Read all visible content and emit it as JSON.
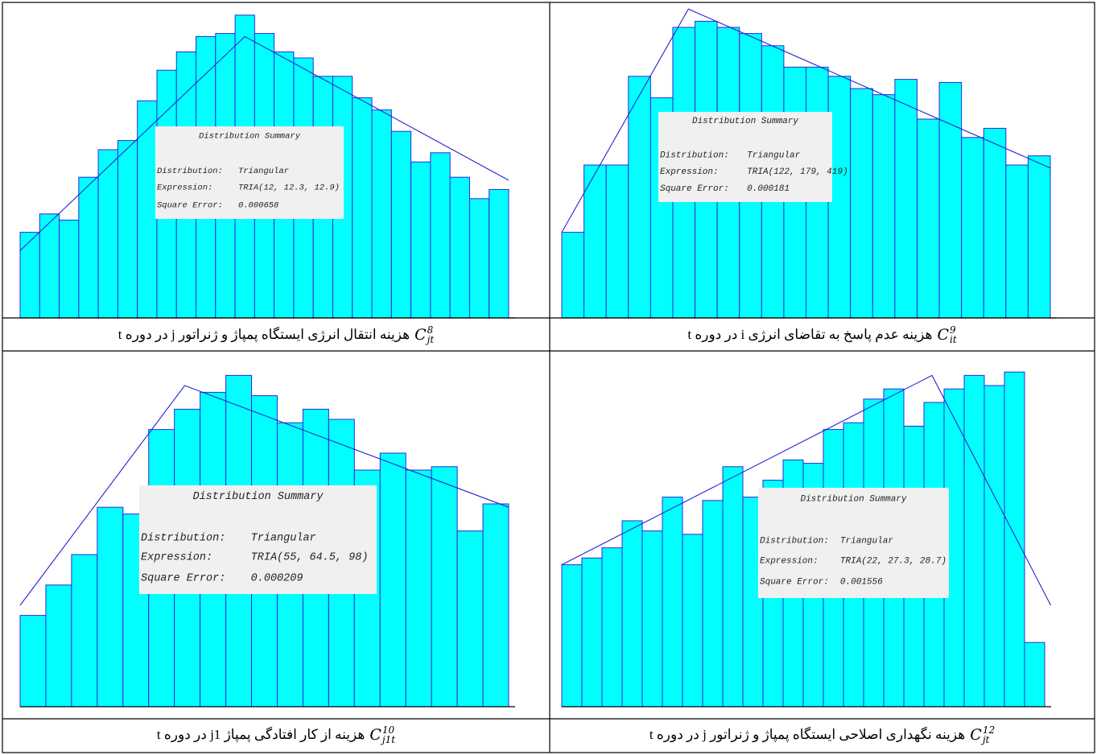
{
  "chart_data": [
    {
      "type": "histogram",
      "bins": [
        0,
        1,
        2,
        3,
        4,
        5,
        6,
        7,
        8,
        9,
        10,
        11,
        12,
        13,
        14,
        15,
        16,
        17,
        18,
        19,
        20,
        21,
        22,
        23,
        24,
        25
      ],
      "values": [
        28,
        34,
        32,
        46,
        55,
        58,
        71,
        81,
        87,
        92,
        93,
        99,
        93,
        87,
        85,
        79,
        79,
        72,
        68,
        61,
        51,
        54,
        46,
        39,
        42
      ],
      "color": "#00ffff",
      "edge_color": "#2b2bd9",
      "xlim": [
        0,
        25
      ],
      "ylim": [
        0,
        105
      ],
      "fit_line": {
        "x": [
          0,
          11.5,
          25
        ],
        "values": [
          22,
          92,
          45
        ],
        "color": "#2424d0"
      },
      "summary": {
        "title": "Distribution Summary",
        "rows": [
          [
            "Distribution:",
            "Triangular"
          ],
          [
            "Expression:",
            "TRIA(12, 12.3, 12.9)"
          ],
          [
            "Square Error:",
            "0.000658"
          ]
        ]
      },
      "caption": {
        "symbol": "C",
        "sub": "jt",
        "sup": "8",
        "text": "هزینه انتقال انرژی ایستگاه پمپاژ و ژنراتور j در دوره t"
      }
    },
    {
      "type": "histogram",
      "bins": [
        0,
        1,
        2,
        3,
        4,
        5,
        6,
        7,
        8,
        9,
        10,
        11,
        12,
        13,
        14,
        15,
        16,
        17,
        18,
        19,
        20,
        21,
        22
      ],
      "values": [
        28,
        50,
        50,
        79,
        72,
        95,
        97,
        95,
        93,
        89,
        82,
        82,
        79,
        75,
        73,
        78,
        65,
        77,
        59,
        62,
        50,
        53
      ],
      "color": "#00ffff",
      "edge_color": "#2b2bd9",
      "xlim": [
        0,
        22
      ],
      "ylim": [
        0,
        105
      ],
      "fit_line": {
        "x": [
          0,
          5.7,
          22
        ],
        "values": [
          28,
          101,
          49
        ],
        "color": "#2424d0"
      },
      "summary": {
        "title": "Distribution Summary",
        "rows": [
          [
            "Distribution:",
            "Triangular"
          ],
          [
            "Expression:",
            "TRIA(122, 179, 419)"
          ],
          [
            "Square Error:",
            "0.000181"
          ]
        ]
      },
      "caption": {
        "symbol": "C",
        "sub": "it",
        "sup": "9",
        "text": "هزینه عدم پاسخ به تقاضای انرژی i در دوره t"
      }
    },
    {
      "type": "histogram",
      "bins": [
        0,
        1,
        2,
        3,
        4,
        5,
        6,
        7,
        8,
        9,
        10,
        11,
        12,
        13,
        14,
        15,
        16,
        17,
        18,
        19
      ],
      "values": [
        27,
        36,
        45,
        59,
        57,
        82,
        88,
        93,
        98,
        92,
        84,
        88,
        85,
        70,
        75,
        70,
        71,
        52,
        60
      ],
      "color": "#00ffff",
      "edge_color": "#2b2bd9",
      "xlim": [
        0,
        19
      ],
      "ylim": [
        0,
        105
      ],
      "fit_line": {
        "x": [
          0,
          6.4,
          19
        ],
        "values": [
          30,
          95,
          59
        ],
        "color": "#2424d0"
      },
      "summary": {
        "title": "Distribution Summary",
        "rows": [
          [
            "Distribution:",
            "Triangular"
          ],
          [
            "Expression:",
            "TRIA(55, 64.5, 98)"
          ],
          [
            "Square Error:",
            "0.000209"
          ]
        ]
      },
      "caption": {
        "symbol": "C",
        "sub": "j1t",
        "sup": "10",
        "text": "هزینه از کار افتادگی پمپاژ j1  در دوره t"
      }
    },
    {
      "type": "histogram",
      "bins": [
        0,
        1,
        2,
        3,
        4,
        5,
        6,
        7,
        8,
        9,
        10,
        11,
        12,
        13,
        14,
        15,
        16,
        17,
        18,
        19,
        20,
        21,
        22,
        23,
        24
      ],
      "values": [
        42,
        44,
        47,
        55,
        52,
        62,
        51,
        61,
        71,
        62,
        67,
        73,
        72,
        82,
        84,
        91,
        94,
        83,
        90,
        94,
        98,
        95,
        99,
        19
      ],
      "color": "#00ffff",
      "edge_color": "#2b2bd9",
      "xlim": [
        0,
        24
      ],
      "ylim": [
        0,
        105
      ],
      "fit_line": {
        "x": [
          0,
          18.4,
          24.3
        ],
        "values": [
          42,
          98,
          30
        ],
        "color": "#2424d0"
      },
      "summary": {
        "title": "Distribution Summary",
        "rows": [
          [
            "Distribution:",
            "Triangular"
          ],
          [
            "Expression:",
            "TRIA(22, 27.3, 28.7)"
          ],
          [
            "Square Error:",
            "0.001556"
          ]
        ]
      },
      "caption": {
        "symbol": "C",
        "sub": "jt",
        "sup": "12",
        "text": "هزینه نگهداری اصلاحی ایستگاه پمپاژ و ژنراتور j در دوره t"
      }
    }
  ]
}
